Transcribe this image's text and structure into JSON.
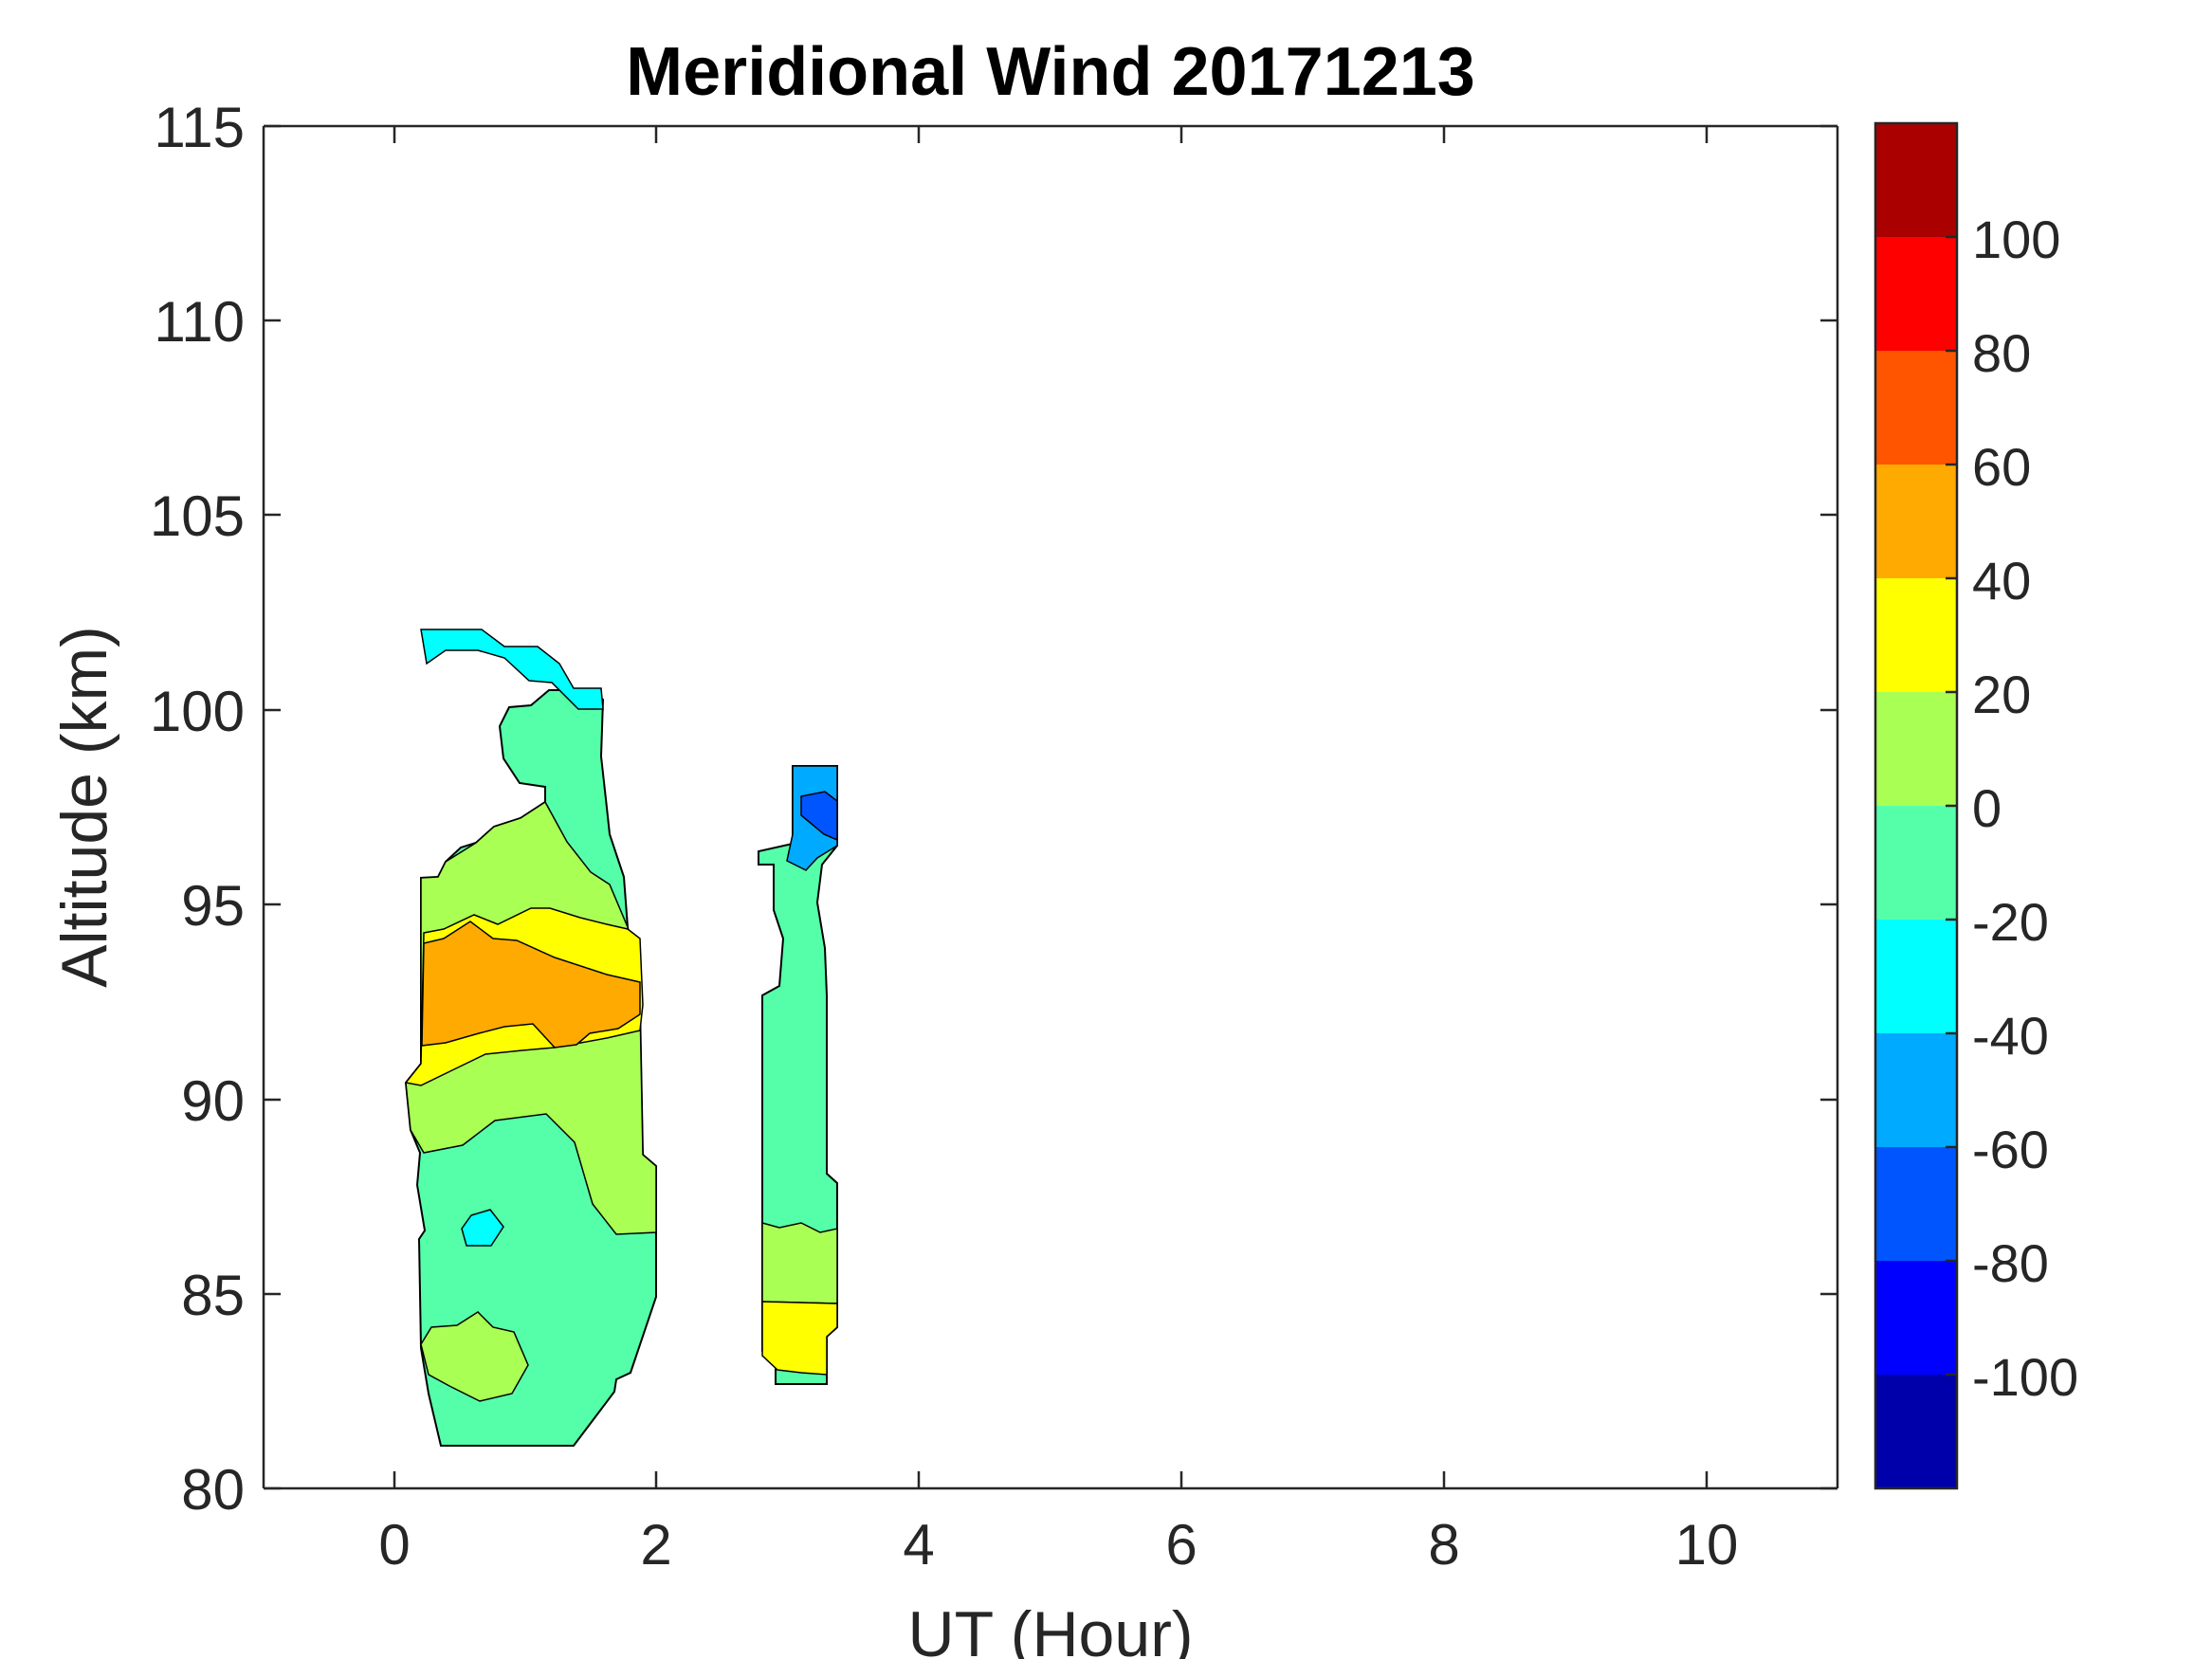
{
  "chart_data": {
    "type": "heatmap",
    "subtype": "filled-contour",
    "title": "Meridional Wind 20171213",
    "xlabel": "UT (Hour)",
    "ylabel": "Altitude (km)",
    "xlim": [
      -1,
      11
    ],
    "ylim": [
      80,
      115
    ],
    "xticks": [
      0,
      2,
      4,
      6,
      8,
      10
    ],
    "yticks": [
      80,
      85,
      90,
      95,
      100,
      105,
      110,
      115
    ],
    "grid": false,
    "colorbar": {
      "placement": "right",
      "range": [
        -120,
        120
      ],
      "levels": [
        -120,
        -100,
        -80,
        -60,
        -40,
        -20,
        0,
        20,
        40,
        60,
        80,
        100,
        120
      ],
      "ticks": [
        100,
        80,
        60,
        40,
        20,
        0,
        -20,
        -40,
        -60,
        -80,
        -100
      ],
      "colors": [
        "#0000aa",
        "#0000ff",
        "#0055ff",
        "#00aaff",
        "#00ffff",
        "#55ffaa",
        "#aaff55",
        "#ffff00",
        "#ffaa00",
        "#ff5500",
        "#ff0000",
        "#aa0000"
      ]
    },
    "regions": [
      {
        "x": [
          0.1,
          0.2,
          0.4,
          0.6,
          0.8,
          1.0,
          1.2,
          1.4,
          1.6,
          1.65,
          1.75,
          1.85,
          1.95,
          2.0,
          2.0,
          1.9,
          1.85,
          1.7,
          1.6,
          1.55,
          1.55,
          1.45,
          1.35,
          1.15,
          0.95,
          0.75,
          0.5,
          0.3,
          0.2,
          0.18,
          0.12,
          0.1
        ],
        "y": [
          81.0,
          81.2,
          81.2,
          81.4,
          81.8,
          83.0,
          86.5,
          89.3,
          92.0,
          93.6,
          95.0,
          96.5,
          98.6,
          101.2,
          101.5,
          101.8,
          101.9,
          101.9,
          101.5,
          100.6,
          99.8,
          99.8,
          100.4,
          101.0,
          101.0,
          100.2,
          99.6,
          99.0,
          98.4,
          98.0,
          98.0,
          97.2
        ],
        "value": 0
      }
    ]
  }
}
